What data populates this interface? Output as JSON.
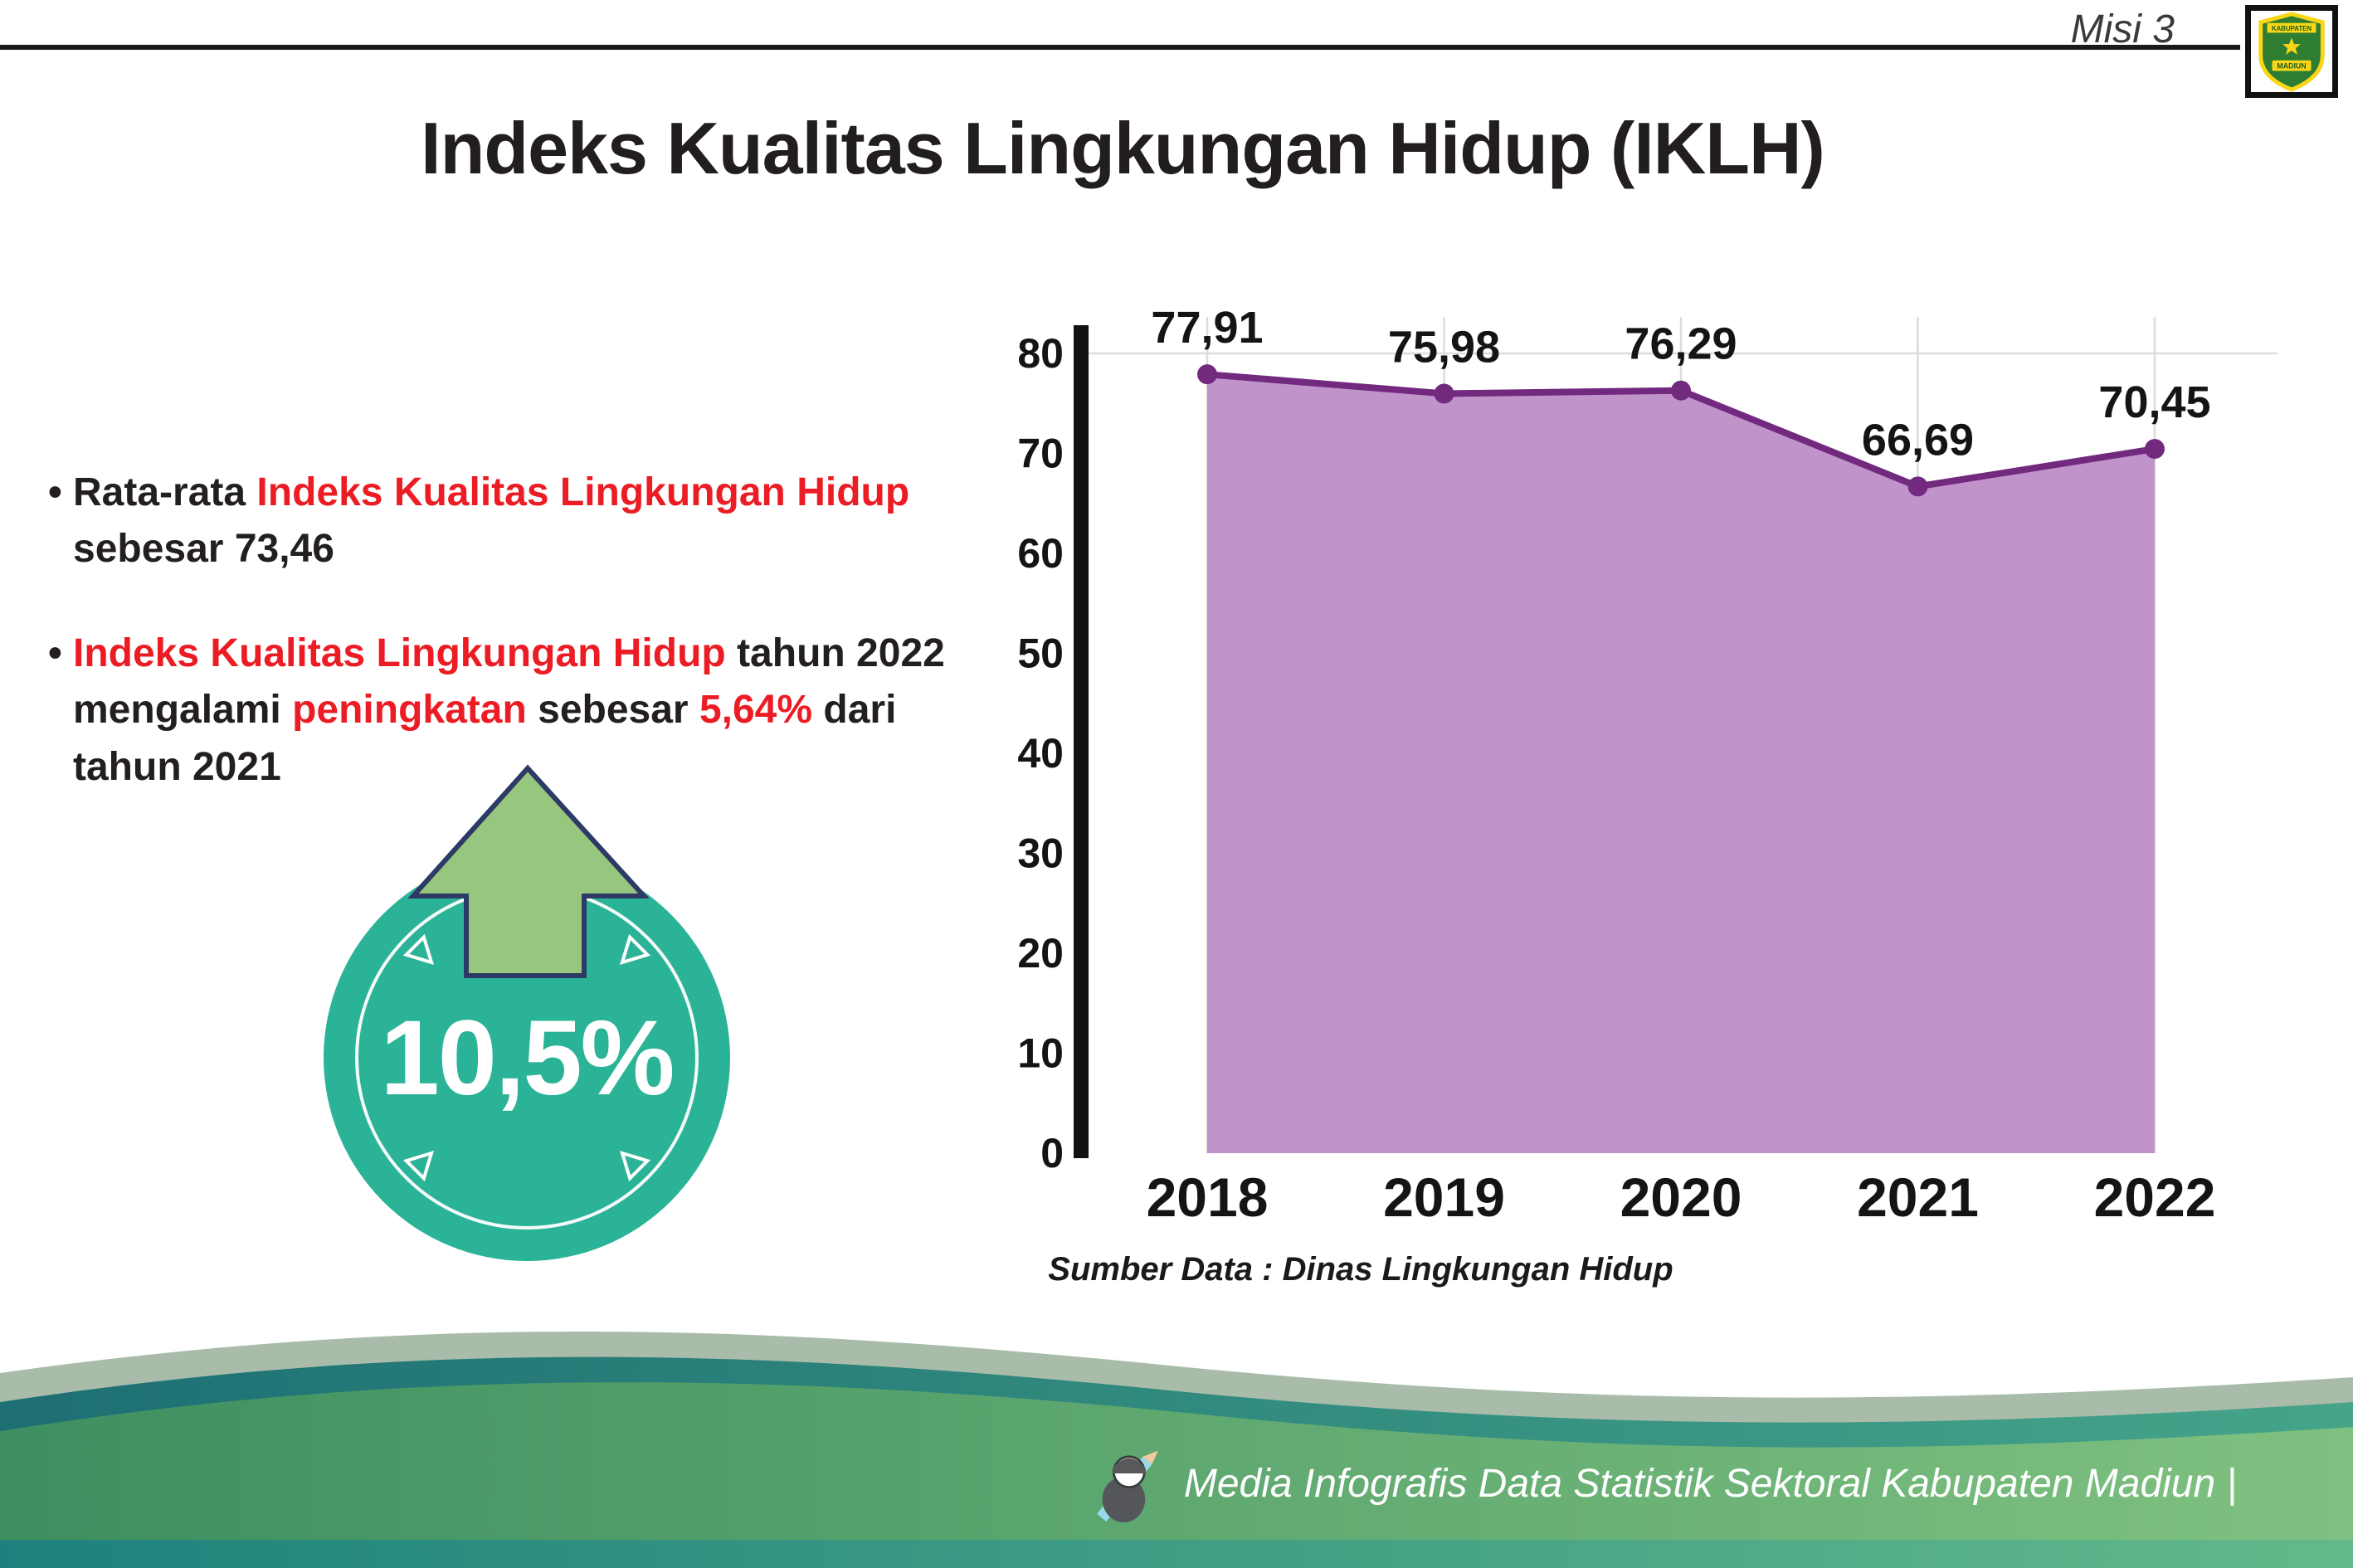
{
  "header": {
    "misi_label": "Misi 3",
    "title": "Indeks Kualitas Lingkungan Hidup (IKLH)",
    "logo": {
      "name": "kabupaten-madiun-emblem",
      "top_text": "KABUPATEN",
      "bottom_text": "MADIUN"
    }
  },
  "bullets": [
    {
      "segments": [
        {
          "text": "Rata-rata ",
          "emphasis": false
        },
        {
          "text": "Indeks Kualitas Lingkungan Hidup",
          "emphasis": true
        },
        {
          "text": " sebesar 73,46",
          "emphasis": false
        }
      ]
    },
    {
      "segments": [
        {
          "text": "Indeks Kualitas Lingkungan Hidup",
          "emphasis": true
        },
        {
          "text": " tahun 2022 mengalami ",
          "emphasis": false
        },
        {
          "text": "peningkatan",
          "emphasis": true
        },
        {
          "text": " sebesar ",
          "emphasis": false
        },
        {
          "text": "5,64%",
          "emphasis": true
        },
        {
          "text": " dari tahun 2021",
          "emphasis": false
        }
      ]
    }
  ],
  "badge": {
    "value": "10,5%",
    "circle_color": "#2bb398",
    "arrow_color": "#97c77e",
    "arrow_outline": "#2d3a66"
  },
  "chart_data": {
    "type": "area",
    "title": "Indeks Kualitas Lingkungan Hidup (IKLH)",
    "x": [
      "2018",
      "2019",
      "2020",
      "2021",
      "2022"
    ],
    "values": [
      77.91,
      75.98,
      76.29,
      66.69,
      70.45
    ],
    "value_labels": [
      "77,91",
      "75,98",
      "76,29",
      "66,69",
      "70,45"
    ],
    "xlabel": "",
    "ylabel": "",
    "ylim": [
      0,
      80
    ],
    "ytick_step": 10,
    "grid": true,
    "legend": "none",
    "fill_color": "#c193cb",
    "line_color": "#722a7f",
    "source": "Sumber Data : Dinas Lingkungan Hidup"
  },
  "footer": {
    "caption": "Media Infografis Data Statistik Sektoral Kabupaten Madiun |"
  },
  "colors": {
    "accent_red": "#ec1c24",
    "text": "#231f20",
    "teal": "#2bb398",
    "purple_fill": "#c193cb",
    "purple_line": "#722a7f"
  }
}
